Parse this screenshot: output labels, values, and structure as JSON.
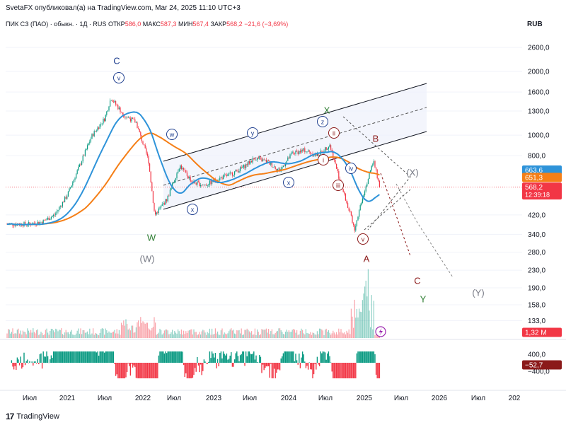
{
  "header": {
    "publisher_line": "SvetaFX опубликовал(а) на TradingView.com, Mar 24, 2025 11:10 UTC+3",
    "symbol": "ПИК СЗ (ПАО) · обыкн. · 1Д · RUS",
    "ohlc": [
      {
        "label": "ОТКР",
        "value": "586,0"
      },
      {
        "label": "МАКС",
        "value": "587,3"
      },
      {
        "label": "МИН",
        "value": "567,4"
      },
      {
        "label": "ЗАКР",
        "value": "568,2"
      }
    ],
    "change": "−21,6 (−3,69%)",
    "currency": "RUB"
  },
  "footer": {
    "logo_text": "TradingView",
    "logo_icon": "tradingview-logo-icon"
  },
  "colors": {
    "candle_up": "#089981",
    "candle_down": "#f23645",
    "ma_blue": "#2e93d9",
    "ma_orange": "#f57f17",
    "channel": "#131722",
    "channel_fill": "#eef1fb",
    "label_blue": "#1f3f8f",
    "label_red": "#8b1a1a",
    "label_green": "#2e7d32",
    "label_gray": "#787b86"
  },
  "chart_data": {
    "type": "candlestick",
    "y_scale": "log",
    "ylim": [
      110,
      3200
    ],
    "y_ticks": [
      "2600,0",
      "2000,0",
      "1600,0",
      "1300,0",
      "1000,0",
      "800,0",
      "420,0",
      "340,0",
      "280,0",
      "230,0",
      "190,0",
      "158,0",
      "133,0"
    ],
    "x_ticks": [
      "Июл",
      "2021",
      "Июл",
      "2022",
      "Июл",
      "2023",
      "Июл",
      "2024",
      "Июл",
      "2025",
      "Июл",
      "2026",
      "Июл",
      "202"
    ],
    "price_badges": [
      {
        "value": "663,6",
        "color": "#2e93d9"
      },
      {
        "value": "651,3",
        "color": "#f57f17"
      },
      {
        "value": "568,2",
        "sub": "12:39:18",
        "color": "#f23645"
      }
    ],
    "volume_badge": {
      "value": "1,32 M",
      "color": "#f23645"
    },
    "oscillator": {
      "ticks": [
        "400,0",
        "−400,0"
      ],
      "current": "−52,7"
    },
    "price_series": [
      [
        "2020-07",
        380
      ],
      [
        "2020-09",
        390
      ],
      [
        "2020-11",
        420
      ],
      [
        "2021-01",
        520
      ],
      [
        "2021-03",
        720
      ],
      [
        "2021-05",
        1000
      ],
      [
        "2021-07",
        1200
      ],
      [
        "2021-08",
        1500
      ],
      [
        "2021-10",
        1250
      ],
      [
        "2021-12",
        1150
      ],
      [
        "2022-02",
        760
      ],
      [
        "2022-03",
        420
      ],
      [
        "2022-05",
        500
      ],
      [
        "2022-07",
        720
      ],
      [
        "2022-09",
        600
      ],
      [
        "2022-11",
        580
      ],
      [
        "2023-01",
        620
      ],
      [
        "2023-03",
        650
      ],
      [
        "2023-05",
        700
      ],
      [
        "2023-07",
        780
      ],
      [
        "2023-09",
        750
      ],
      [
        "2023-11",
        680
      ],
      [
        "2024-01",
        820
      ],
      [
        "2024-03",
        850
      ],
      [
        "2024-05",
        800
      ],
      [
        "2024-07",
        900
      ],
      [
        "2024-09",
        560
      ],
      [
        "2024-11",
        360
      ],
      [
        "2024-12",
        480
      ],
      [
        "2025-02",
        760
      ],
      [
        "2025-03",
        568
      ]
    ],
    "wave_labels": [
      {
        "text": "C",
        "color": "label_blue"
      },
      {
        "text": "v",
        "color": "label_blue",
        "circled": true
      },
      {
        "text": "W",
        "color": "label_green"
      },
      {
        "text": "(W)",
        "color": "label_gray"
      },
      {
        "text": "w",
        "color": "label_blue",
        "circled": true
      },
      {
        "text": "x",
        "color": "label_blue",
        "circled": true
      },
      {
        "text": "y",
        "color": "label_blue",
        "circled": true
      },
      {
        "text": "x",
        "color": "label_blue",
        "circled": true
      },
      {
        "text": "z",
        "color": "label_blue",
        "circled": true
      },
      {
        "text": "X",
        "color": "label_green"
      },
      {
        "text": "ii",
        "color": "label_red",
        "circled": true
      },
      {
        "text": "i",
        "color": "label_red",
        "circled": true
      },
      {
        "text": "iii",
        "color": "label_red",
        "circled": true
      },
      {
        "text": "iv",
        "color": "label_blue",
        "circled": true
      },
      {
        "text": "v",
        "color": "label_red",
        "circled": true
      },
      {
        "text": "A",
        "color": "label_red"
      },
      {
        "text": "B",
        "color": "label_red"
      },
      {
        "text": "C",
        "color": "label_red"
      },
      {
        "text": "(X)",
        "color": "label_gray"
      },
      {
        "text": "Y",
        "color": "label_green"
      },
      {
        "text": "(Y)",
        "color": "label_gray"
      }
    ]
  }
}
